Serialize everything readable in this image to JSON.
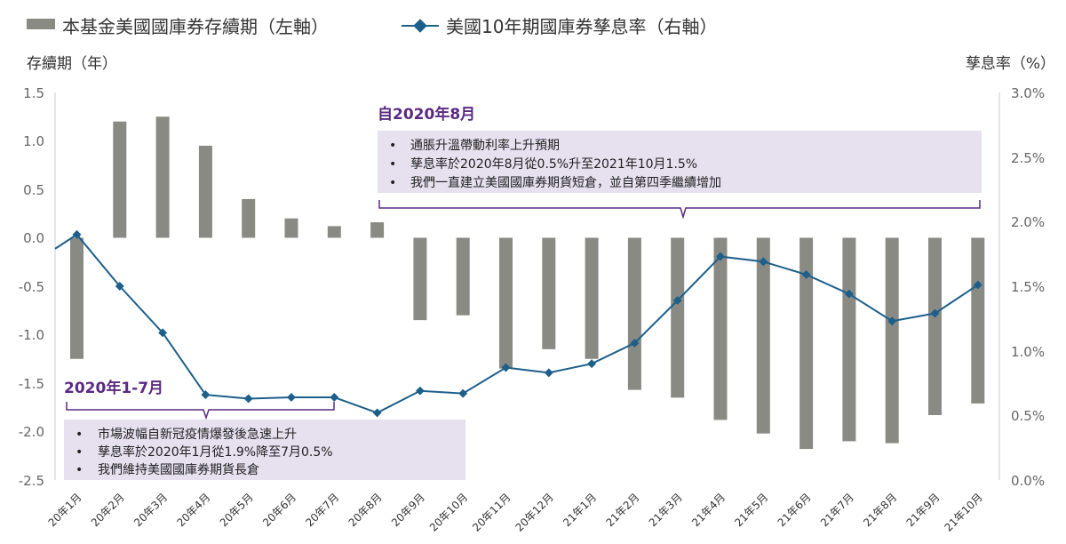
{
  "legend": {
    "bar_label": "本基金美國國庫券存續期（左軸）",
    "line_label": "美國10年期國庫券孳息率（右軸）"
  },
  "axes": {
    "left_title": "存續期（年）",
    "right_title": "孳息率（%）",
    "left_ticks": [
      "1.5",
      "1.0",
      "0.5",
      "0.0",
      "-0.5",
      "-1.0",
      "-1.5",
      "-2.0",
      "-2.5"
    ],
    "right_ticks": [
      "3.0%",
      "2.5%",
      "2.0%",
      "1.5%",
      "1.0%",
      "0.5%",
      "0.0%"
    ]
  },
  "annotations": {
    "a1": {
      "title": "自2020年8月",
      "bullets": [
        "通脹升溫帶動利率上升預期",
        "孳息率於2020年8月從0.5%升至2021年10月1.5%",
        "我們一直建立美國國庫券期貨短倉，並自第四季繼續增加"
      ]
    },
    "a2": {
      "title": "2020年1-7月",
      "bullets": [
        "市場波幅自新冠疫情爆發後急速上升",
        "孳息率於2020年1月從1.9%降至7月0.5%",
        "我們維持美國國庫券期貨長倉"
      ]
    }
  },
  "colors": {
    "bar": "#8a8a84",
    "line": "#1c5f8a",
    "annotation_bg": "#e6e0ef",
    "annotation_bracket": "#5a2a82"
  },
  "chart_data": {
    "type": "bar",
    "categories": [
      "20年1月",
      "20年2月",
      "20年3月",
      "20年4月",
      "20年5月",
      "20年6月",
      "20年7月",
      "20年8月",
      "20年9月",
      "20年10月",
      "20年11月",
      "20年12月",
      "21年1月",
      "21年2月",
      "21年3月",
      "21年4月",
      "21年5月",
      "21年6月",
      "21年7月",
      "21年8月",
      "21年9月",
      "21年10月"
    ],
    "series": [
      {
        "name": "本基金美國國庫券存續期（左軸）",
        "type": "bar",
        "axis": "left",
        "values": [
          -1.25,
          1.2,
          1.25,
          0.95,
          0.4,
          0.2,
          0.12,
          0.16,
          -0.85,
          -0.8,
          -1.35,
          -1.15,
          -1.25,
          -1.57,
          -1.65,
          -1.88,
          -2.02,
          -2.18,
          -2.1,
          -2.12,
          -1.83,
          -1.71
        ]
      },
      {
        "name": "美國10年期國庫券孳息率（右軸）",
        "type": "line",
        "axis": "right",
        "values": [
          1.9,
          1.5,
          1.14,
          0.66,
          0.63,
          0.64,
          0.64,
          0.52,
          0.69,
          0.67,
          0.87,
          0.83,
          0.9,
          1.06,
          1.39,
          1.73,
          1.69,
          1.59,
          1.44,
          1.23,
          1.29,
          1.51
        ]
      }
    ],
    "left_axis": {
      "label": "存續期（年）",
      "ylim": [
        -2.5,
        1.5
      ]
    },
    "right_axis": {
      "label": "孳息率（%）",
      "ylim": [
        0.0,
        3.0
      ]
    },
    "legend_position": "top-left",
    "grid": false
  }
}
